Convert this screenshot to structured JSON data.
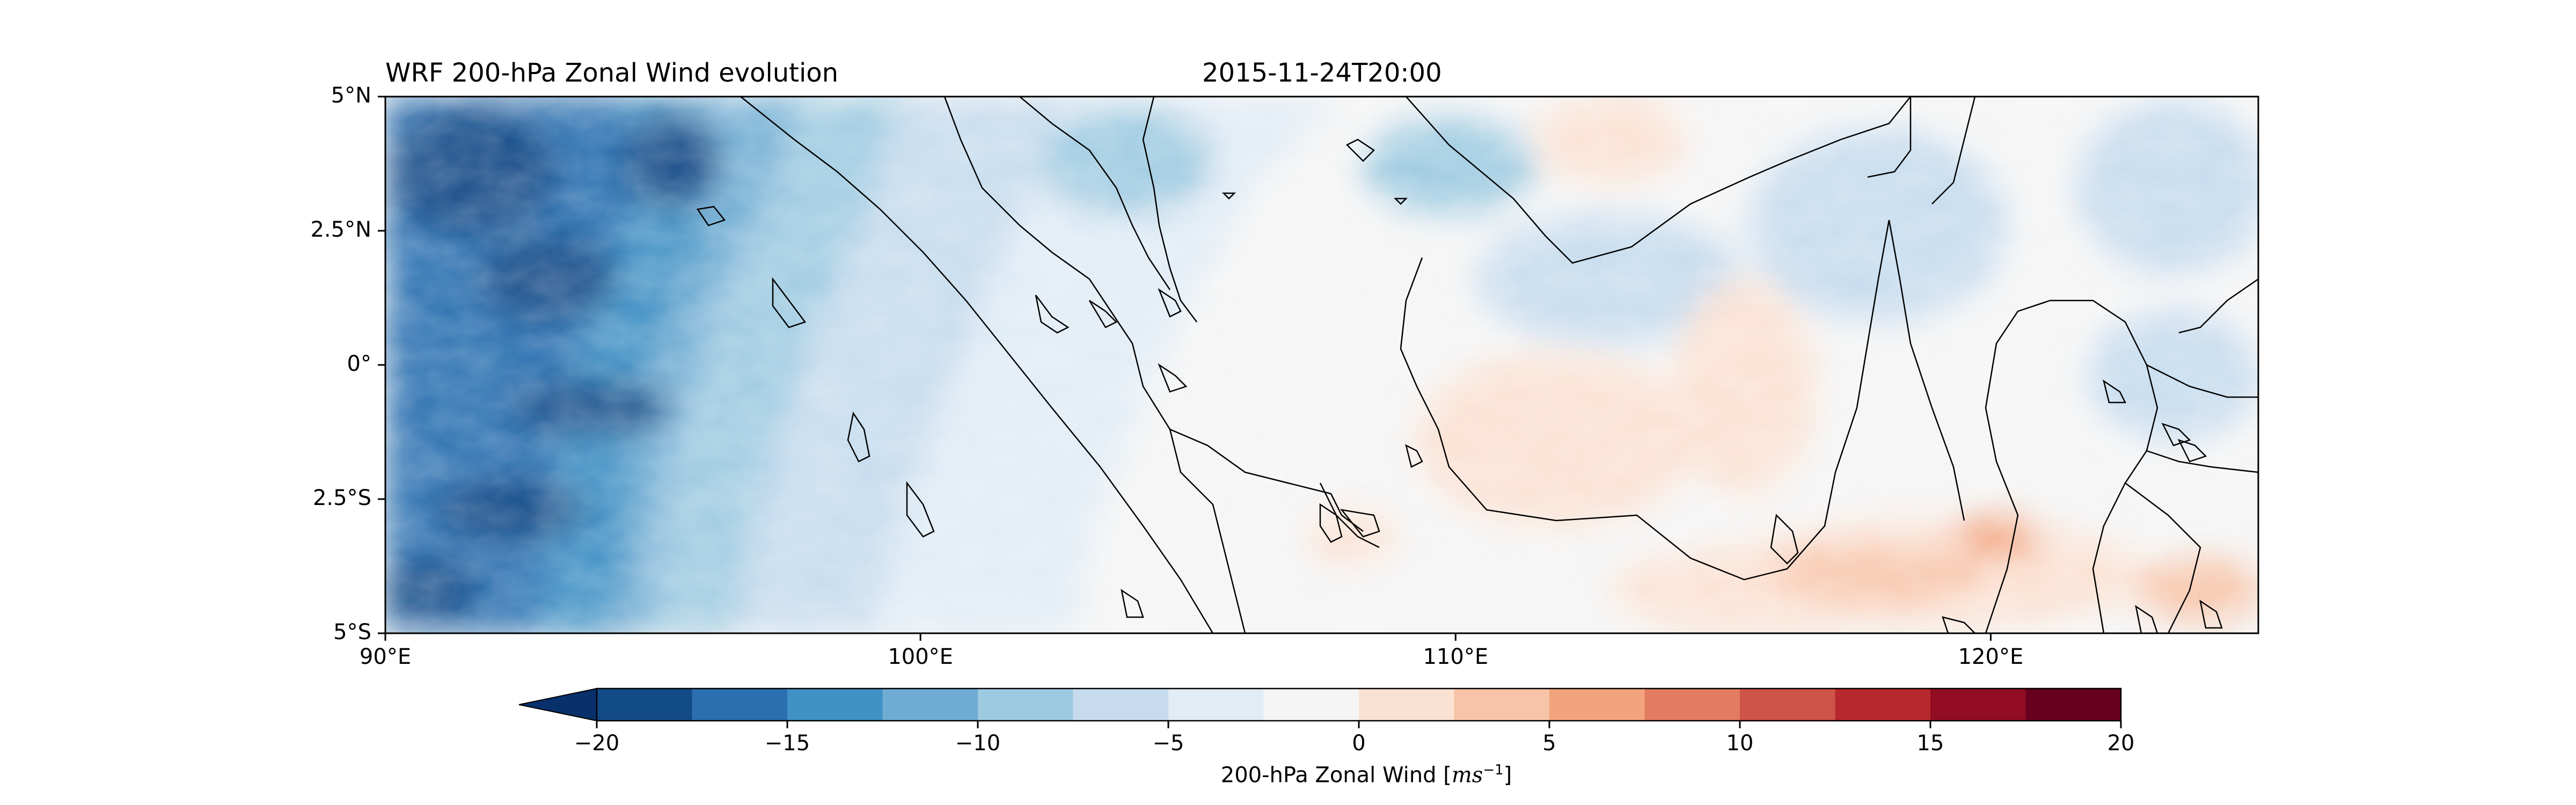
{
  "figure": {
    "title_left": "WRF 200-hPa Zonal Wind evolution",
    "title_center": "2015-11-24T20:00"
  },
  "map": {
    "extent": {
      "lon_min": 90,
      "lon_max": 125,
      "lat_min": -5,
      "lat_max": 5
    },
    "lat_ticks": [
      {
        "value": 5,
        "label": "5°N"
      },
      {
        "value": 2.5,
        "label": "2.5°N"
      },
      {
        "value": 0,
        "label": "0°"
      },
      {
        "value": -2.5,
        "label": "2.5°S"
      },
      {
        "value": -5,
        "label": "5°S"
      }
    ],
    "lon_ticks": [
      {
        "value": 90,
        "label": "90°E"
      },
      {
        "value": 100,
        "label": "100°E"
      },
      {
        "value": 110,
        "label": "110°E"
      },
      {
        "value": 120,
        "label": "120°E"
      }
    ],
    "coastline_color": "#000000"
  },
  "colorbar": {
    "title_text": "200-hPa Zonal Wind [",
    "unit_text": "ms",
    "unit_exponent": "−1",
    "title_close": "]",
    "extend": "min",
    "levels": [
      -20,
      -17.5,
      -15,
      -12.5,
      -10,
      -7.5,
      -5,
      -2.5,
      0,
      2.5,
      5,
      7.5,
      10,
      12.5,
      15,
      17.5,
      20
    ],
    "colors": [
      "#134b87",
      "#2c6fb0",
      "#4091c5",
      "#6eacd3",
      "#9ecae1",
      "#c6dcee",
      "#e1ecf5",
      "#f5f5f5",
      "#fbe1d2",
      "#f7c4a8",
      "#f3a47e",
      "#e37b62",
      "#cf5448",
      "#b7282e",
      "#920c22",
      "#67001f"
    ],
    "under_color": "#08306b",
    "tick_labels": [
      {
        "value": -20,
        "label": "−20"
      },
      {
        "value": -15,
        "label": "−15"
      },
      {
        "value": -10,
        "label": "−10"
      },
      {
        "value": -5,
        "label": "−5"
      },
      {
        "value": 0,
        "label": "0"
      },
      {
        "value": 5,
        "label": "5"
      },
      {
        "value": 10,
        "label": "10"
      },
      {
        "value": 15,
        "label": "15"
      },
      {
        "value": 20,
        "label": "20"
      }
    ]
  }
}
